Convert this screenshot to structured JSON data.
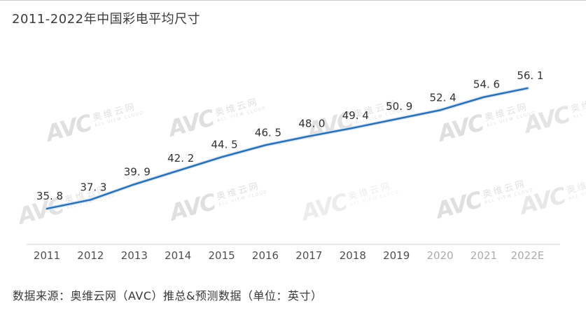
{
  "page": {
    "title": "2011-2022年中国彩电平均尺寸",
    "source_note": "数据来源：奥维云网（AVC）推总&预测数据（单位：英寸）"
  },
  "watermark": {
    "logo": "AVC",
    "name": "奥维云网",
    "subtext": "ALL VIEW CLOUD"
  },
  "chart_data": {
    "type": "line",
    "title": "2011-2022年中国彩电平均尺寸",
    "xlabel": "",
    "ylabel": "",
    "unit": "英寸",
    "categories": [
      "2011",
      "2012",
      "2013",
      "2014",
      "2015",
      "2016",
      "2017",
      "2018",
      "2019",
      "2020",
      "2021",
      "2022E"
    ],
    "values": [
      35.8,
      37.3,
      39.9,
      42.2,
      44.5,
      46.5,
      48.0,
      49.4,
      50.9,
      52.4,
      54.6,
      56.1
    ],
    "point_labels": [
      "35. 8",
      "37. 3",
      "39. 9",
      "42. 2",
      "44. 5",
      "46. 5",
      "48. 0",
      "49. 4",
      "50. 9",
      "52. 4",
      "54. 6",
      "56. 1"
    ],
    "faded_category_indices": [
      9,
      10,
      11
    ],
    "series_name": "中国彩电平均尺寸",
    "line_color": "#2b6fb3",
    "line_halo_color": "#cfe2f3",
    "label_color": "#323232",
    "axis_line_color": "#e2e2e2",
    "ylim": [
      35,
      57
    ],
    "grid": false,
    "legend": "none"
  }
}
